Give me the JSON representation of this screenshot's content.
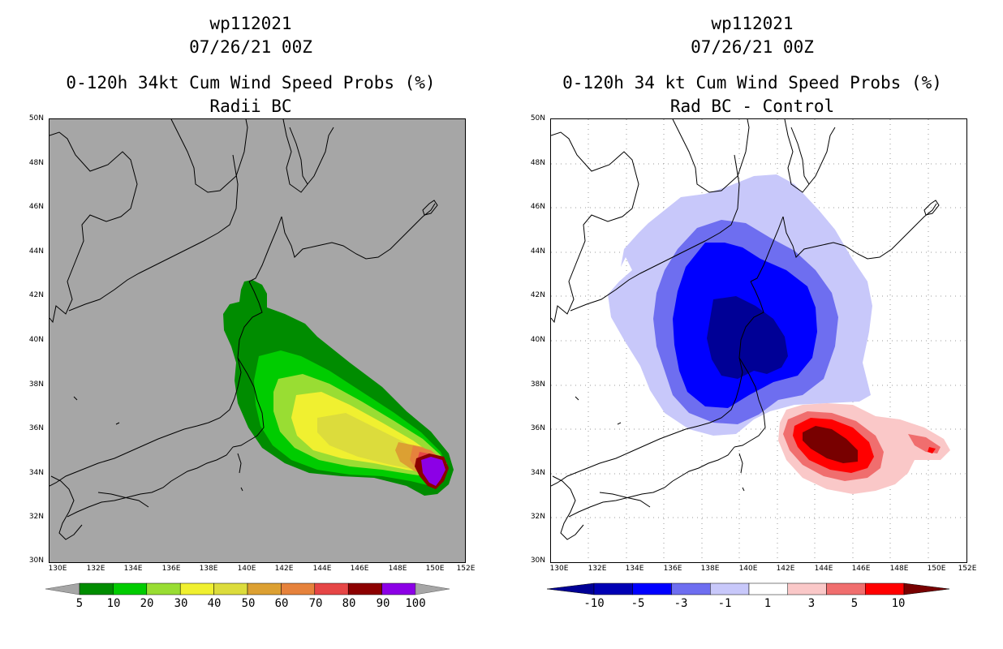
{
  "left": {
    "storm_id": "wp112021",
    "datetime": "07/26/21 00Z",
    "title": "0-120h 34kt Cum Wind Speed Probs (%)",
    "subtitle": "Radii BC",
    "colorbar": {
      "labels": [
        "5",
        "10",
        "20",
        "30",
        "40",
        "50",
        "60",
        "70",
        "80",
        "90",
        "100"
      ],
      "colors": [
        "#008c00",
        "#00cc00",
        "#99dd33",
        "#f0f030",
        "#dcdc3c",
        "#dca032",
        "#e6823c",
        "#e64646",
        "#8c0000",
        "#8c00e6"
      ],
      "end_color": "#a6a6a6"
    },
    "background_color": "#a6a6a6"
  },
  "right": {
    "storm_id": "wp112021",
    "datetime": "07/26/21 00Z",
    "title": "0-120h 34 kt Cum Wind Speed Probs (%)",
    "subtitle": "Rad BC - Control",
    "colorbar": {
      "labels": [
        "-10",
        "-5",
        "-3",
        "-1",
        "1",
        "3",
        "5",
        "10"
      ],
      "colors": [
        "#0000b4",
        "#0000ff",
        "#6e6ef0",
        "#c8c8fa",
        "#ffffff",
        "#fac8c8",
        "#f06e6e",
        "#ff0000"
      ],
      "low_end_color": "#000096",
      "high_end_color": "#780000"
    }
  },
  "axes": {
    "lat_labels": [
      "50N",
      "48N",
      "46N",
      "44N",
      "42N",
      "40N",
      "38N",
      "36N",
      "34N",
      "32N",
      "30N"
    ],
    "lon_labels": [
      "130E",
      "132E",
      "134E",
      "136E",
      "138E",
      "140E",
      "142E",
      "144E",
      "146E",
      "148E",
      "150E",
      "152E"
    ],
    "lat_range": [
      30,
      50
    ],
    "lon_range": [
      130,
      152
    ]
  }
}
